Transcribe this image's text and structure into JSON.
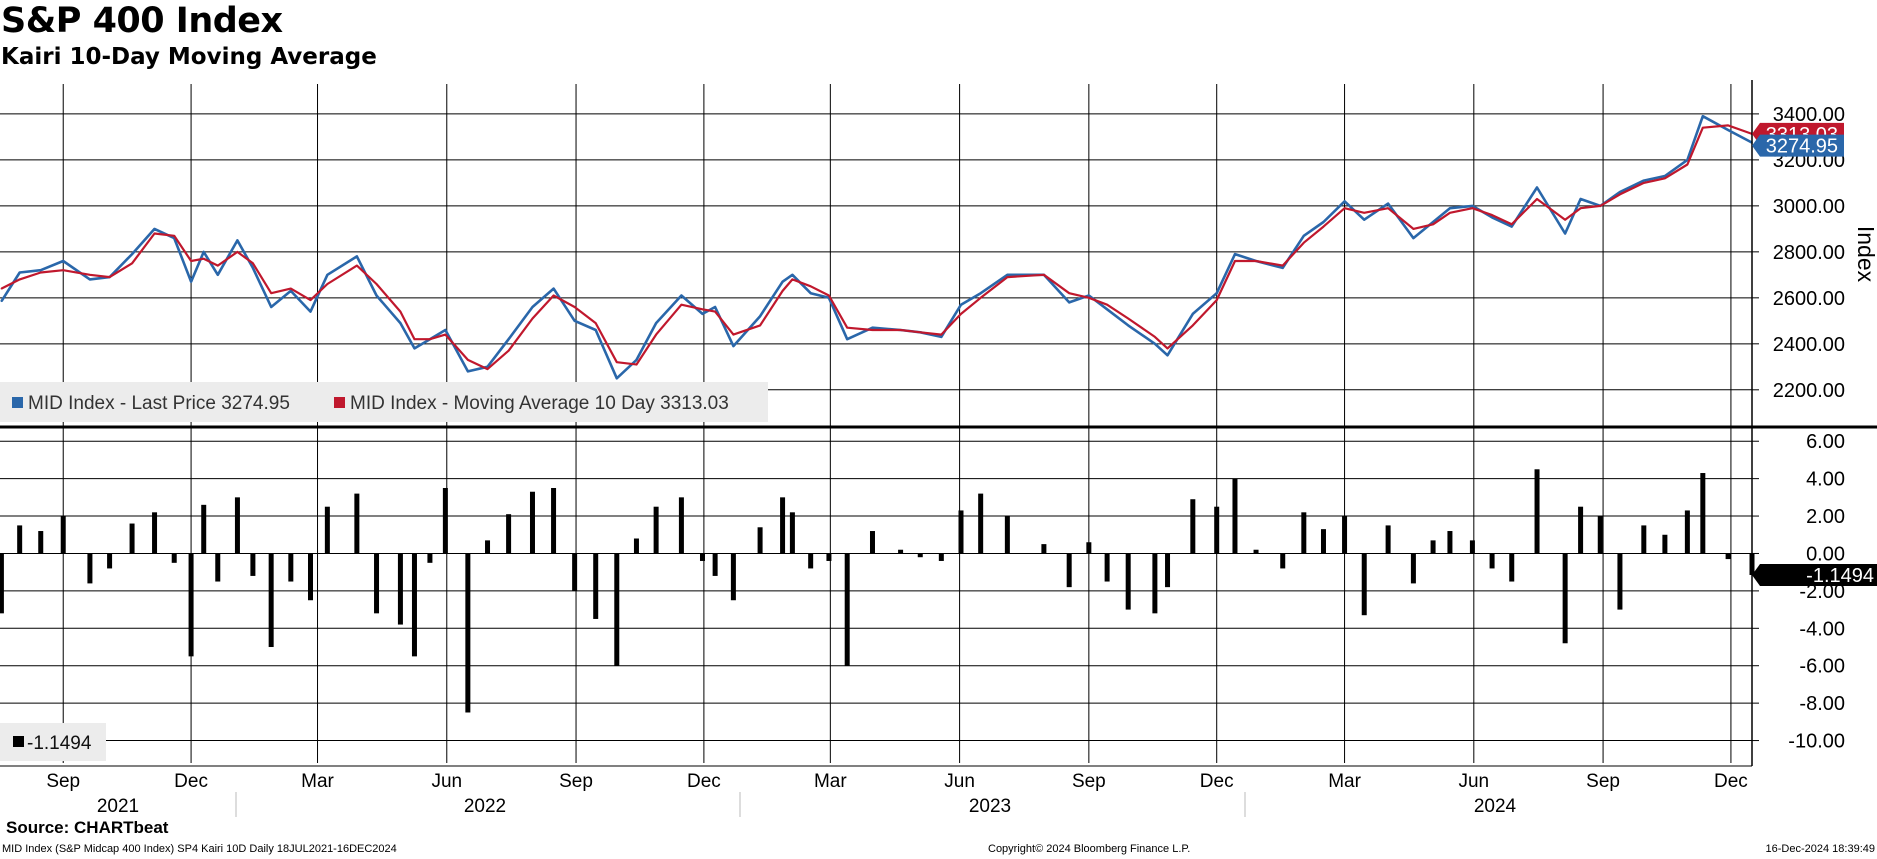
{
  "header": {
    "title": "S&P 400 Index",
    "subtitle": "Kairi 10-Day Moving Average"
  },
  "footer": {
    "source": "Source: CHARTbeat",
    "left": "MID Index (S&P Midcap 400 Index) SP4 Kairi 10D  Daily 18JUL2021-16DEC2024",
    "center": "Copyright© 2024 Bloomberg Finance L.P.",
    "right": "16-Dec-2024 18:39:49"
  },
  "colors": {
    "price": "#2a67aa",
    "moving_average": "#c0182d",
    "kairi": "#000000",
    "grid": "#000000"
  },
  "chart_data": [
    {
      "type": "line",
      "panel": "upper",
      "ylabel": "Index",
      "ylim": [
        2060,
        3530
      ],
      "yticks": [
        2200,
        2400,
        2600,
        2800,
        3000,
        3200,
        3400
      ],
      "ytick_labels": [
        "2200.00",
        "2400.00",
        "2600.00",
        "2800.00",
        "3000.00",
        "3200.00",
        "3400.00"
      ],
      "x_range": [
        "2021-07-18",
        "2024-12-16"
      ],
      "last_value_labels": {
        "price": "3274.95",
        "moving_average": "3313.03"
      },
      "legend": [
        {
          "label": "MID Index - Last Price 3274.95",
          "color": "#2a67aa"
        },
        {
          "label": "MID Index - Moving Average 10 Day 3313.03",
          "color": "#c0182d"
        }
      ],
      "series": [
        {
          "name": "MID Index - Last Price",
          "color": "#2a67aa",
          "x": [
            "2021-07-19",
            "2021-08-01",
            "2021-08-16",
            "2021-09-01",
            "2021-09-20",
            "2021-10-04",
            "2021-10-20",
            "2021-11-05",
            "2021-11-19",
            "2021-12-01",
            "2021-12-10",
            "2021-12-20",
            "2022-01-03",
            "2022-01-14",
            "2022-01-27",
            "2022-02-10",
            "2022-02-24",
            "2022-03-08",
            "2022-03-29",
            "2022-04-12",
            "2022-04-29",
            "2022-05-09",
            "2022-05-20",
            "2022-05-31",
            "2022-06-16",
            "2022-06-30",
            "2022-07-15",
            "2022-08-01",
            "2022-08-16",
            "2022-08-31",
            "2022-09-15",
            "2022-09-30",
            "2022-10-14",
            "2022-10-28",
            "2022-11-15",
            "2022-11-30",
            "2022-12-09",
            "2022-12-22",
            "2023-01-10",
            "2023-01-26",
            "2023-02-02",
            "2023-02-15",
            "2023-02-28",
            "2023-03-13",
            "2023-03-31",
            "2023-04-20",
            "2023-05-04",
            "2023-05-19",
            "2023-06-02",
            "2023-06-16",
            "2023-07-05",
            "2023-07-31",
            "2023-08-18",
            "2023-09-01",
            "2023-09-14",
            "2023-09-29",
            "2023-10-18",
            "2023-10-27",
            "2023-11-14",
            "2023-12-01",
            "2023-12-14",
            "2023-12-29",
            "2024-01-17",
            "2024-02-01",
            "2024-02-15",
            "2024-03-01",
            "2024-03-15",
            "2024-04-01",
            "2024-04-19",
            "2024-05-03",
            "2024-05-15",
            "2024-05-31",
            "2024-06-14",
            "2024-06-28",
            "2024-07-16",
            "2024-08-05",
            "2024-08-16",
            "2024-08-30",
            "2024-09-13",
            "2024-09-30",
            "2024-10-15",
            "2024-10-31",
            "2024-11-11",
            "2024-11-29",
            "2024-12-16"
          ],
          "values": [
            2585,
            2710,
            2720,
            2760,
            2680,
            2690,
            2790,
            2900,
            2860,
            2670,
            2800,
            2700,
            2850,
            2730,
            2560,
            2630,
            2540,
            2700,
            2780,
            2610,
            2490,
            2380,
            2420,
            2460,
            2280,
            2300,
            2420,
            2560,
            2640,
            2500,
            2460,
            2250,
            2330,
            2490,
            2610,
            2530,
            2560,
            2390,
            2520,
            2670,
            2700,
            2620,
            2600,
            2420,
            2470,
            2460,
            2450,
            2430,
            2570,
            2620,
            2700,
            2700,
            2580,
            2610,
            2550,
            2480,
            2400,
            2350,
            2530,
            2620,
            2790,
            2760,
            2730,
            2870,
            2930,
            3020,
            2940,
            3010,
            2860,
            2930,
            2990,
            3000,
            2950,
            2910,
            3080,
            2880,
            3030,
            3000,
            3060,
            3110,
            3130,
            3200,
            3390,
            3330,
            3275
          ]
        },
        {
          "name": "MID Index - Moving Average 10 Day",
          "color": "#c0182d",
          "x": [
            "2021-07-19",
            "2021-08-01",
            "2021-08-16",
            "2021-09-01",
            "2021-09-20",
            "2021-10-04",
            "2021-10-20",
            "2021-11-05",
            "2021-11-19",
            "2021-12-01",
            "2021-12-10",
            "2021-12-20",
            "2022-01-03",
            "2022-01-14",
            "2022-01-27",
            "2022-02-10",
            "2022-02-24",
            "2022-03-08",
            "2022-03-29",
            "2022-04-12",
            "2022-04-29",
            "2022-05-09",
            "2022-05-20",
            "2022-05-31",
            "2022-06-16",
            "2022-06-30",
            "2022-07-15",
            "2022-08-01",
            "2022-08-16",
            "2022-08-31",
            "2022-09-15",
            "2022-09-30",
            "2022-10-14",
            "2022-10-28",
            "2022-11-15",
            "2022-11-30",
            "2022-12-09",
            "2022-12-22",
            "2023-01-10",
            "2023-01-26",
            "2023-02-02",
            "2023-02-15",
            "2023-02-28",
            "2023-03-13",
            "2023-03-31",
            "2023-04-20",
            "2023-05-04",
            "2023-05-19",
            "2023-06-02",
            "2023-06-16",
            "2023-07-05",
            "2023-07-31",
            "2023-08-18",
            "2023-09-01",
            "2023-09-14",
            "2023-09-29",
            "2023-10-18",
            "2023-10-27",
            "2023-11-14",
            "2023-12-01",
            "2023-12-14",
            "2023-12-29",
            "2024-01-17",
            "2024-02-01",
            "2024-02-15",
            "2024-03-01",
            "2024-03-15",
            "2024-04-01",
            "2024-04-19",
            "2024-05-03",
            "2024-05-15",
            "2024-05-31",
            "2024-06-14",
            "2024-06-28",
            "2024-07-16",
            "2024-08-05",
            "2024-08-16",
            "2024-08-30",
            "2024-09-13",
            "2024-09-30",
            "2024-10-15",
            "2024-10-31",
            "2024-11-11",
            "2024-11-29",
            "2024-12-16"
          ],
          "values": [
            2640,
            2680,
            2710,
            2720,
            2700,
            2690,
            2750,
            2880,
            2870,
            2760,
            2770,
            2740,
            2800,
            2750,
            2620,
            2640,
            2590,
            2660,
            2740,
            2660,
            2540,
            2420,
            2420,
            2440,
            2330,
            2290,
            2370,
            2510,
            2610,
            2560,
            2490,
            2320,
            2310,
            2440,
            2570,
            2550,
            2540,
            2440,
            2480,
            2630,
            2680,
            2650,
            2610,
            2470,
            2460,
            2460,
            2450,
            2440,
            2530,
            2600,
            2690,
            2700,
            2620,
            2600,
            2570,
            2510,
            2430,
            2380,
            2480,
            2590,
            2760,
            2760,
            2740,
            2840,
            2910,
            2990,
            2970,
            2990,
            2900,
            2920,
            2970,
            2990,
            2960,
            2920,
            3030,
            2940,
            2990,
            3000,
            3050,
            3100,
            3120,
            3180,
            3340,
            3350,
            3313
          ]
        }
      ]
    },
    {
      "type": "bar",
      "panel": "lower",
      "name": "SP4 Kairi 10D",
      "color": "#000000",
      "ylim": [
        -11.2,
        6.6
      ],
      "yticks": [
        6,
        4,
        2,
        0,
        -2,
        -4,
        -6,
        -8,
        -10
      ],
      "ytick_labels": [
        "6.00",
        "4.00",
        "2.00",
        "0.00",
        "-2.00",
        "-4.00",
        "-6.00",
        "-8.00",
        "-10.00"
      ],
      "last_value_label": "-1.1494",
      "legend": [
        {
          "label": "-1.1494",
          "color": "#000000"
        }
      ],
      "x": [
        "2021-07-19",
        "2021-08-01",
        "2021-08-16",
        "2021-09-01",
        "2021-09-20",
        "2021-10-04",
        "2021-10-20",
        "2021-11-05",
        "2021-11-19",
        "2021-12-01",
        "2021-12-10",
        "2021-12-20",
        "2022-01-03",
        "2022-01-14",
        "2022-01-27",
        "2022-02-10",
        "2022-02-24",
        "2022-03-08",
        "2022-03-29",
        "2022-04-12",
        "2022-04-29",
        "2022-05-09",
        "2022-05-20",
        "2022-05-31",
        "2022-06-16",
        "2022-06-30",
        "2022-07-15",
        "2022-08-01",
        "2022-08-16",
        "2022-08-31",
        "2022-09-15",
        "2022-09-30",
        "2022-10-14",
        "2022-10-28",
        "2022-11-15",
        "2022-11-30",
        "2022-12-09",
        "2022-12-22",
        "2023-01-10",
        "2023-01-26",
        "2023-02-02",
        "2023-02-15",
        "2023-02-28",
        "2023-03-13",
        "2023-03-31",
        "2023-04-20",
        "2023-05-04",
        "2023-05-19",
        "2023-06-02",
        "2023-06-16",
        "2023-07-05",
        "2023-07-31",
        "2023-08-18",
        "2023-09-01",
        "2023-09-14",
        "2023-09-29",
        "2023-10-18",
        "2023-10-27",
        "2023-11-14",
        "2023-12-01",
        "2023-12-14",
        "2023-12-29",
        "2024-01-17",
        "2024-02-01",
        "2024-02-15",
        "2024-03-01",
        "2024-03-15",
        "2024-04-01",
        "2024-04-19",
        "2024-05-03",
        "2024-05-15",
        "2024-05-31",
        "2024-06-14",
        "2024-06-28",
        "2024-07-16",
        "2024-08-05",
        "2024-08-16",
        "2024-08-30",
        "2024-09-13",
        "2024-09-30",
        "2024-10-15",
        "2024-10-31",
        "2024-11-11",
        "2024-11-29",
        "2024-12-16"
      ],
      "values": [
        -3.2,
        1.5,
        1.2,
        2.0,
        -1.6,
        -0.8,
        1.6,
        2.2,
        -0.5,
        -5.5,
        2.6,
        -1.5,
        3.0,
        -1.2,
        -5.0,
        -1.5,
        -2.5,
        2.5,
        3.2,
        -3.2,
        -3.8,
        -5.5,
        -0.5,
        3.5,
        -8.5,
        0.7,
        2.1,
        3.3,
        3.5,
        -2.0,
        -3.5,
        -6.0,
        0.8,
        2.5,
        3.0,
        -0.4,
        -1.2,
        -2.5,
        1.4,
        3.0,
        2.2,
        -0.8,
        -0.4,
        -6.0,
        1.2,
        0.2,
        -0.2,
        -0.4,
        2.3,
        3.2,
        2.0,
        0.5,
        -1.8,
        0.6,
        -1.5,
        -3.0,
        -3.2,
        -1.8,
        2.9,
        2.5,
        4.0,
        0.2,
        -0.8,
        2.2,
        1.3,
        2.0,
        -3.3,
        1.5,
        -1.6,
        0.7,
        1.2,
        0.7,
        -0.8,
        -1.5,
        4.5,
        -4.8,
        2.5,
        2.0,
        -3.0,
        1.5,
        1.0,
        2.3,
        4.3,
        -0.3,
        -1.15
      ]
    }
  ],
  "x_axis": {
    "months": [
      "Sep",
      "Dec",
      "Mar",
      "Jun",
      "Sep",
      "Dec",
      "Mar",
      "Jun",
      "Sep",
      "Dec",
      "Mar",
      "Jun",
      "Sep",
      "Dec"
    ],
    "month_dates": [
      "2021-09-01",
      "2021-12-01",
      "2022-03-01",
      "2022-06-01",
      "2022-09-01",
      "2022-12-01",
      "2023-03-01",
      "2023-06-01",
      "2023-09-01",
      "2023-12-01",
      "2024-03-01",
      "2024-06-01",
      "2024-09-01",
      "2024-12-01"
    ],
    "years": [
      "2021",
      "2022",
      "2023",
      "2024"
    ]
  }
}
